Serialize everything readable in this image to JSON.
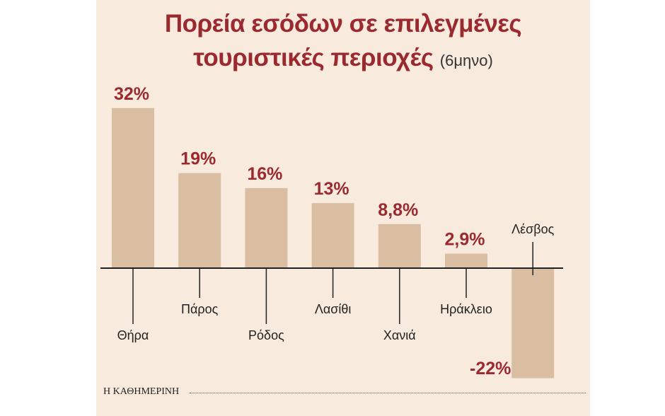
{
  "title_line1": "Πορεία εσόδων σε επιλεγμένες",
  "title_line2": "τουριστικές περιοχές",
  "title_sub": "(6μηνο)",
  "source": "Η ΚΑΘΗΜΕΡΙΝΗ",
  "colors": {
    "bar": "#d9bea2",
    "value_text": "#9a2a2f",
    "axis": "#222222",
    "background": "#f8ebdd"
  },
  "chart_data": {
    "type": "bar",
    "categories": [
      "Θήρα",
      "Πάρος",
      "Ρόδος",
      "Λασίθι",
      "Χανιά",
      "Ηράκλειο",
      "Λέσβος"
    ],
    "values": [
      32,
      19,
      16,
      13,
      8.8,
      2.9,
      -22
    ],
    "value_labels": [
      "32%",
      "19%",
      "16%",
      "13%",
      "8,8%",
      "2,9%",
      "-22%"
    ],
    "ylabel": "",
    "xlabel": "",
    "ylim": [
      -22,
      32
    ],
    "grid": false,
    "legend": "none"
  }
}
